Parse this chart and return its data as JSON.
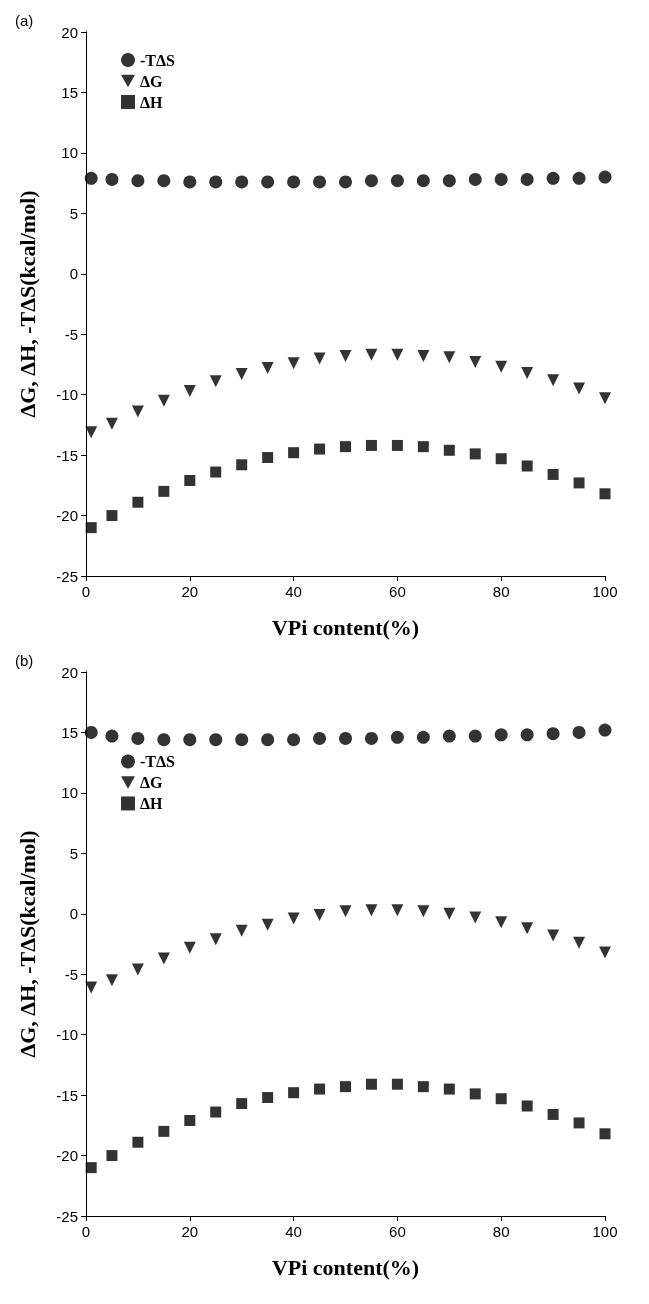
{
  "chart_data": [
    {
      "type": "scatter",
      "title": "(a)",
      "xlabel": "VPi content(%)",
      "ylabel": "ΔG, ΔH, -TΔS(kcal/mol)",
      "x": [
        1,
        5,
        10,
        15,
        20,
        25,
        30,
        35,
        40,
        45,
        50,
        55,
        60,
        65,
        70,
        75,
        80,
        85,
        90,
        95,
        100
      ],
      "xlim": [
        0,
        100
      ],
      "xticks": [
        0,
        20,
        40,
        60,
        80,
        100
      ],
      "ylim": [
        -25,
        20
      ],
      "yticks": [
        -25,
        -20,
        -15,
        -10,
        -5,
        0,
        5,
        10,
        15,
        20
      ],
      "grid": false,
      "legend": "top left",
      "series": [
        {
          "name": "-TΔS",
          "color": "#000000",
          "marker": "circle",
          "values": [
            7.9,
            7.8,
            7.7,
            7.7,
            7.6,
            7.6,
            7.6,
            7.6,
            7.6,
            7.6,
            7.6,
            7.7,
            7.7,
            7.7,
            7.7,
            7.8,
            7.8,
            7.8,
            7.9,
            7.9,
            8.0
          ]
        },
        {
          "name": "ΔG",
          "color": "#000000",
          "marker": "triangle",
          "values": [
            -13.1,
            -12.4,
            -11.4,
            -10.5,
            -9.7,
            -8.9,
            -8.3,
            -7.8,
            -7.4,
            -7.0,
            -6.8,
            -6.7,
            -6.7,
            -6.8,
            -6.9,
            -7.3,
            -7.7,
            -8.2,
            -8.8,
            -9.5,
            -10.3
          ]
        },
        {
          "name": "ΔH",
          "color": "#000000",
          "marker": "square",
          "values": [
            -21.0,
            -20.0,
            -18.9,
            -18.0,
            -17.1,
            -16.4,
            -15.8,
            -15.2,
            -14.8,
            -14.5,
            -14.3,
            -14.2,
            -14.2,
            -14.3,
            -14.6,
            -14.9,
            -15.3,
            -15.9,
            -16.6,
            -17.3,
            -18.2
          ]
        }
      ]
    },
    {
      "type": "scatter",
      "title": "(b)",
      "xlabel": "VPi content(%)",
      "ylabel": "ΔG, ΔH, -TΔS(kcal/mol)",
      "x": [
        1,
        5,
        10,
        15,
        20,
        25,
        30,
        35,
        40,
        45,
        50,
        55,
        60,
        65,
        70,
        75,
        80,
        85,
        90,
        95,
        100
      ],
      "xlim": [
        0,
        100
      ],
      "xticks": [
        0,
        20,
        40,
        60,
        80,
        100
      ],
      "ylim": [
        -25,
        20
      ],
      "yticks": [
        -25,
        -20,
        -15,
        -10,
        -5,
        0,
        5,
        10,
        15,
        20
      ],
      "grid": false,
      "legend": "top left",
      "series": [
        {
          "name": "-TΔS",
          "color": "#000000",
          "marker": "circle",
          "values": [
            15.0,
            14.7,
            14.5,
            14.4,
            14.4,
            14.4,
            14.4,
            14.4,
            14.4,
            14.5,
            14.5,
            14.5,
            14.6,
            14.6,
            14.7,
            14.7,
            14.8,
            14.8,
            14.9,
            15.0,
            15.2
          ]
        },
        {
          "name": "ΔG",
          "color": "#000000",
          "marker": "triangle",
          "values": [
            -6.1,
            -5.5,
            -4.6,
            -3.7,
            -2.8,
            -2.1,
            -1.4,
            -0.9,
            -0.4,
            -0.1,
            0.2,
            0.3,
            0.3,
            0.2,
            0.0,
            -0.3,
            -0.7,
            -1.2,
            -1.8,
            -2.4,
            -3.2
          ]
        },
        {
          "name": "ΔH",
          "color": "#000000",
          "marker": "square",
          "values": [
            -21.0,
            -20.0,
            -18.9,
            -18.0,
            -17.1,
            -16.4,
            -15.7,
            -15.2,
            -14.8,
            -14.5,
            -14.3,
            -14.1,
            -14.1,
            -14.3,
            -14.5,
            -14.9,
            -15.3,
            -15.9,
            -16.6,
            -17.3,
            -18.2
          ]
        }
      ]
    }
  ]
}
